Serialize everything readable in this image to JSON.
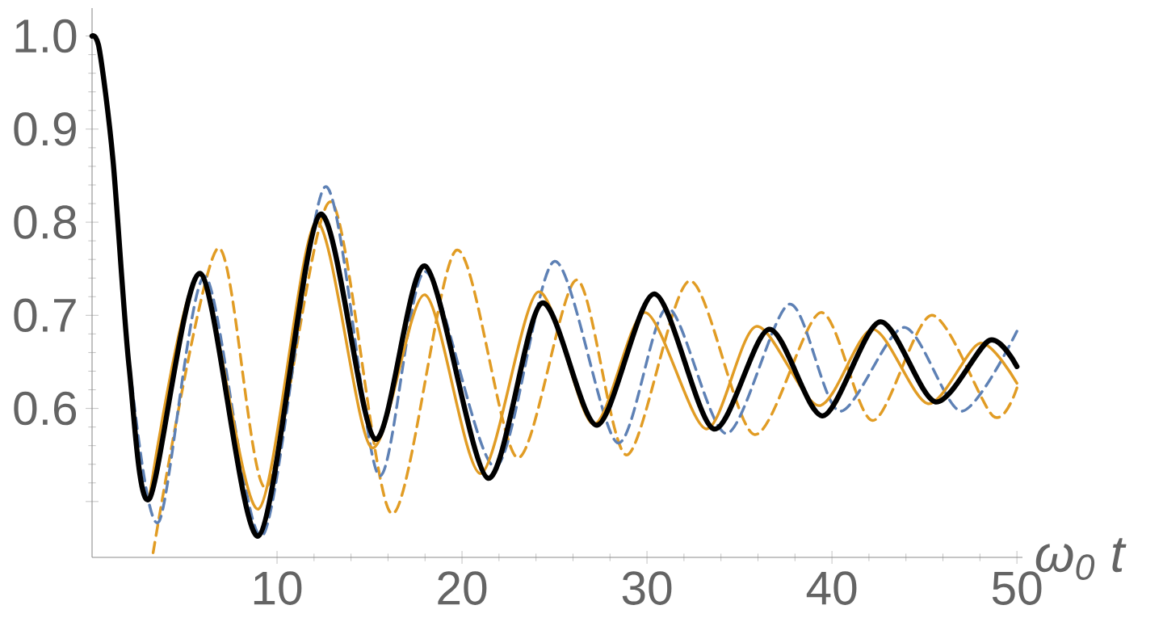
{
  "chart_data": {
    "type": "line",
    "xlabel": "ω$_{0}$ t",
    "xlim": [
      0,
      50.3
    ],
    "ylim": [
      0.44,
      1.03
    ],
    "xticks": [
      10,
      20,
      30,
      40,
      50
    ],
    "yticks": [
      {
        "value": 0.5,
        "label": null
      },
      {
        "value": 0.6,
        "label": "0.6"
      },
      {
        "value": 0.7,
        "label": "0.7"
      },
      {
        "value": 0.8,
        "label": "0.8"
      },
      {
        "value": 0.9,
        "label": "0.9"
      },
      {
        "value": 1,
        "label": "1.0"
      }
    ],
    "series": [
      {
        "color": "#e19c24",
        "line_style": "dashed",
        "x": [
          3.3,
          6.8,
          9.4,
          12.9,
          16.2,
          19.7,
          23.0,
          26.2,
          28.9,
          32.3,
          35.8,
          39.4,
          42.2,
          45.4,
          48.7,
          50
        ],
        "values": [
          0.445,
          0.772,
          0.515,
          0.822,
          0.487,
          0.77,
          0.547,
          0.738,
          0.55,
          0.737,
          0.572,
          0.703,
          0.587,
          0.7,
          0.592,
          0.622
        ]
      },
      {
        "color": "#5e81b5",
        "line_style": "dashed",
        "x": [
          0,
          0.4,
          1.13,
          2.0,
          3.6,
          6.1,
          9.2,
          12.6,
          15.5,
          18.0,
          21.8,
          25.0,
          28.4,
          31.1,
          34.3,
          37.7,
          40.4,
          43.9,
          47.0,
          50
        ],
        "values": [
          1,
          0.985,
          0.867,
          0.65,
          0.478,
          0.742,
          0.463,
          0.838,
          0.528,
          0.747,
          0.537,
          0.758,
          0.563,
          0.708,
          0.573,
          0.712,
          0.597,
          0.687,
          0.597,
          0.683
        ]
      },
      {
        "color": "#e19c24",
        "line_style": "solid",
        "x": [
          3.1,
          5.8,
          9.0,
          12.1,
          15.1,
          18.0,
          21.0,
          24.1,
          27.1,
          29.9,
          33.2,
          35.9,
          39.3,
          42.2,
          45.2,
          48.0,
          50
        ],
        "values": [
          0.505,
          0.745,
          0.492,
          0.8,
          0.558,
          0.722,
          0.53,
          0.725,
          0.583,
          0.703,
          0.578,
          0.688,
          0.603,
          0.685,
          0.605,
          0.67,
          0.627
        ]
      },
      {
        "color": "#000000",
        "line_style": "solid",
        "x": [
          0,
          0.4,
          1.13,
          2.0,
          3.1,
          5.85,
          9.0,
          12.3,
          15.3,
          18.0,
          21.4,
          24.3,
          27.3,
          30.4,
          33.6,
          36.6,
          39.5,
          42.6,
          45.6,
          48.5,
          50
        ],
        "values": [
          1,
          0.985,
          0.867,
          0.645,
          0.503,
          0.745,
          0.463,
          0.808,
          0.567,
          0.753,
          0.525,
          0.713,
          0.582,
          0.723,
          0.578,
          0.685,
          0.592,
          0.693,
          0.607,
          0.673,
          0.645
        ]
      }
    ]
  }
}
